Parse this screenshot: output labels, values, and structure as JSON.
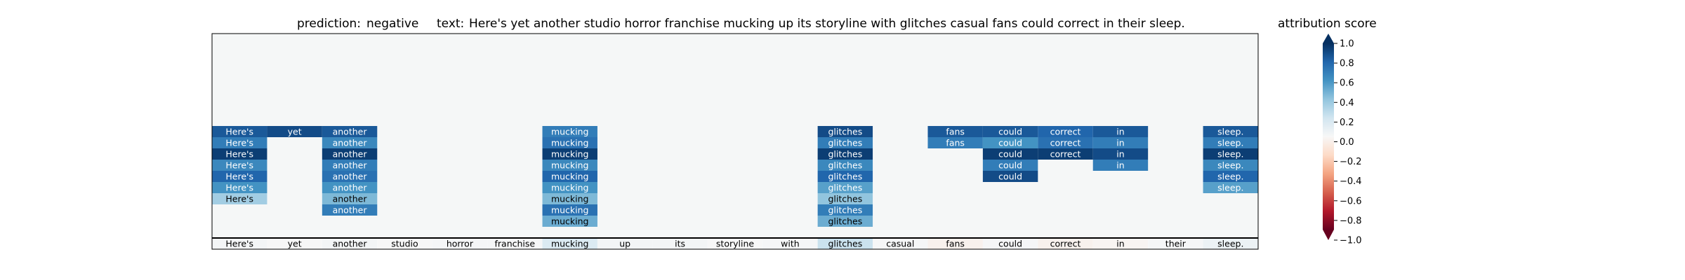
{
  "prediction_label": "prediction:",
  "prediction_value": "negative",
  "text_label": "text:",
  "text_value": "Here's yet another studio horror franchise mucking up its storyline with glitches casual fans could correct in their sleep.",
  "colorbar": {
    "title": "attribution score",
    "ticks": [
      "1.0",
      "0.8",
      "0.6",
      "0.4",
      "0.2",
      "0.0",
      "−0.2",
      "−0.4",
      "−0.6",
      "−0.8",
      "−1.0"
    ],
    "colormap": "RdBu",
    "range": [
      -1.0,
      1.0
    ]
  },
  "chart_data": {
    "type": "heatmap",
    "title": "prediction:  negative     text:  Here's yet another studio horror franchise mucking up its storyline with glitches casual fans could correct in their sleep.",
    "tokens": [
      "Here's",
      "yet",
      "another",
      "studio",
      "horror",
      "franchise",
      "mucking",
      "up",
      "its",
      "storyline",
      "with",
      "glitches",
      "casual",
      "fans",
      "could",
      "correct",
      "in",
      "their",
      "sleep."
    ],
    "bottom_row_scores": [
      0.02,
      0.0,
      0.02,
      0.0,
      0.01,
      0.01,
      0.15,
      0.02,
      0.02,
      0.0,
      0.01,
      0.22,
      0.01,
      -0.04,
      0.01,
      -0.04,
      -0.02,
      0.01,
      0.06
    ],
    "stack_rows": 10,
    "stacked_cells": [
      {
        "token": "Here's",
        "values": [
          0.85,
          0.7,
          0.95,
          0.65,
          0.8,
          0.6,
          0.35
        ]
      },
      {
        "token": "yet",
        "values": [
          0.9
        ]
      },
      {
        "token": "another",
        "values": [
          0.85,
          0.65,
          0.95,
          0.7,
          0.75,
          0.6,
          0.45,
          0.7
        ]
      },
      {
        "token": "mucking",
        "values": [
          0.7,
          0.75,
          0.95,
          0.65,
          0.8,
          0.6,
          0.45,
          0.75,
          0.5
        ]
      },
      {
        "token": "glitches",
        "values": [
          0.9,
          0.7,
          0.95,
          0.65,
          0.8,
          0.55,
          0.4,
          0.7,
          0.5
        ]
      },
      {
        "token": "fans",
        "values": [
          0.85,
          0.7
        ]
      },
      {
        "token": "could",
        "values": [
          0.85,
          0.6,
          0.95,
          0.7,
          0.9
        ]
      },
      {
        "token": "correct",
        "values": [
          0.8,
          0.75,
          0.95
        ]
      },
      {
        "token": "in",
        "values": [
          0.85,
          0.7,
          0.9,
          0.7
        ]
      },
      {
        "token": "sleep.",
        "values": [
          0.85,
          0.7,
          0.95,
          0.65,
          0.8,
          0.55
        ]
      }
    ]
  }
}
